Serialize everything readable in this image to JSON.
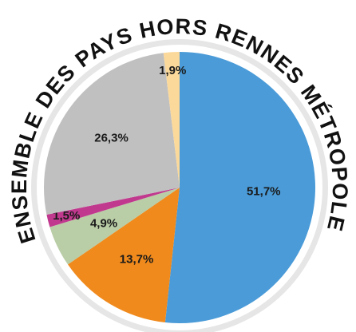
{
  "chart_data": {
    "type": "pie",
    "title": "ENSEMBLE DES PAYS HORS RENNES MÉTROPOLE",
    "values": [
      51.7,
      13.7,
      4.9,
      1.5,
      26.3,
      1.9
    ],
    "value_labels": [
      "51,7%",
      "13,7%",
      "4,9%",
      "1,5%",
      "26,3%",
      "1,9%"
    ],
    "colors": [
      "#4a9bd8",
      "#f08a1c",
      "#b9cda6",
      "#c0398e",
      "#c0c0c0",
      "#fbd99b"
    ]
  }
}
